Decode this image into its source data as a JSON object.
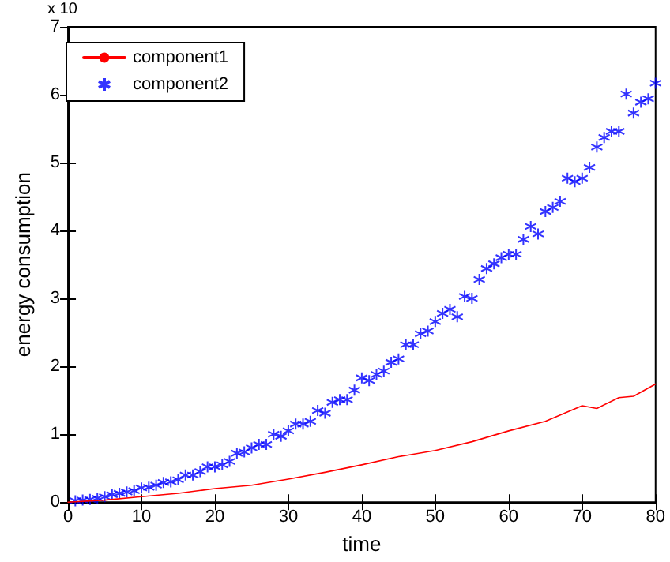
{
  "chart_data": {
    "type": "line",
    "xlabel": "time",
    "ylabel": "energy consumption",
    "annotations": [
      "x 10"
    ],
    "xlim": [
      0,
      80
    ],
    "xticks": [
      0,
      10,
      20,
      30,
      40,
      50,
      60,
      70,
      80
    ],
    "ylim": [
      0,
      7
    ],
    "yticks": [
      0,
      1,
      2,
      3,
      4,
      5,
      6,
      7
    ],
    "grid": false,
    "legend": "top left",
    "series": [
      {
        "name": "component1",
        "color": "#ff0000",
        "marker": "none",
        "line_style": "solid",
        "x": [
          0,
          5,
          10,
          15,
          20,
          25,
          30,
          35,
          40,
          45,
          50,
          55,
          60,
          65,
          70,
          72,
          75,
          77,
          80
        ],
        "values": [
          0,
          0.03,
          0.08,
          0.13,
          0.2,
          0.25,
          0.34,
          0.44,
          0.55,
          0.67,
          0.76,
          0.89,
          1.05,
          1.19,
          1.42,
          1.38,
          1.54,
          1.56,
          1.74
        ]
      },
      {
        "name": "component2",
        "color": "#0000ff",
        "type": "scatter",
        "marker": "star",
        "x": [
          1,
          2,
          3,
          4,
          5,
          6,
          7,
          8,
          9,
          10,
          11,
          12,
          13,
          14,
          15,
          16,
          17,
          18,
          19,
          20,
          21,
          22,
          23,
          24,
          25,
          26,
          27,
          28,
          29,
          30,
          31,
          32,
          33,
          34,
          35,
          36,
          37,
          38,
          39,
          40,
          41,
          42,
          43,
          44,
          45,
          46,
          47,
          48,
          49,
          50,
          51,
          52,
          53,
          54,
          55,
          56,
          57,
          58,
          59,
          60,
          61,
          62,
          63,
          64,
          65,
          66,
          67,
          68,
          69,
          70,
          71,
          72,
          73,
          74,
          75,
          76,
          77,
          78,
          79,
          80
        ],
        "values": [
          0.02,
          0.03,
          0.04,
          0.06,
          0.08,
          0.11,
          0.13,
          0.15,
          0.17,
          0.21,
          0.22,
          0.25,
          0.29,
          0.3,
          0.33,
          0.4,
          0.4,
          0.45,
          0.52,
          0.52,
          0.55,
          0.6,
          0.72,
          0.74,
          0.8,
          0.85,
          0.85,
          1.0,
          0.97,
          1.05,
          1.15,
          1.15,
          1.19,
          1.35,
          1.31,
          1.47,
          1.51,
          1.51,
          1.65,
          1.83,
          1.79,
          1.88,
          1.93,
          2.06,
          2.11,
          2.32,
          2.32,
          2.48,
          2.52,
          2.66,
          2.78,
          2.84,
          2.73,
          3.03,
          3.0,
          3.28,
          3.44,
          3.51,
          3.6,
          3.65,
          3.65,
          3.87,
          4.06,
          3.95,
          4.28,
          4.34,
          4.43,
          4.77,
          4.72,
          4.77,
          4.93,
          5.23,
          5.37,
          5.46,
          5.46,
          6.01,
          5.73,
          5.89,
          5.94,
          6.17
        ]
      }
    ]
  }
}
